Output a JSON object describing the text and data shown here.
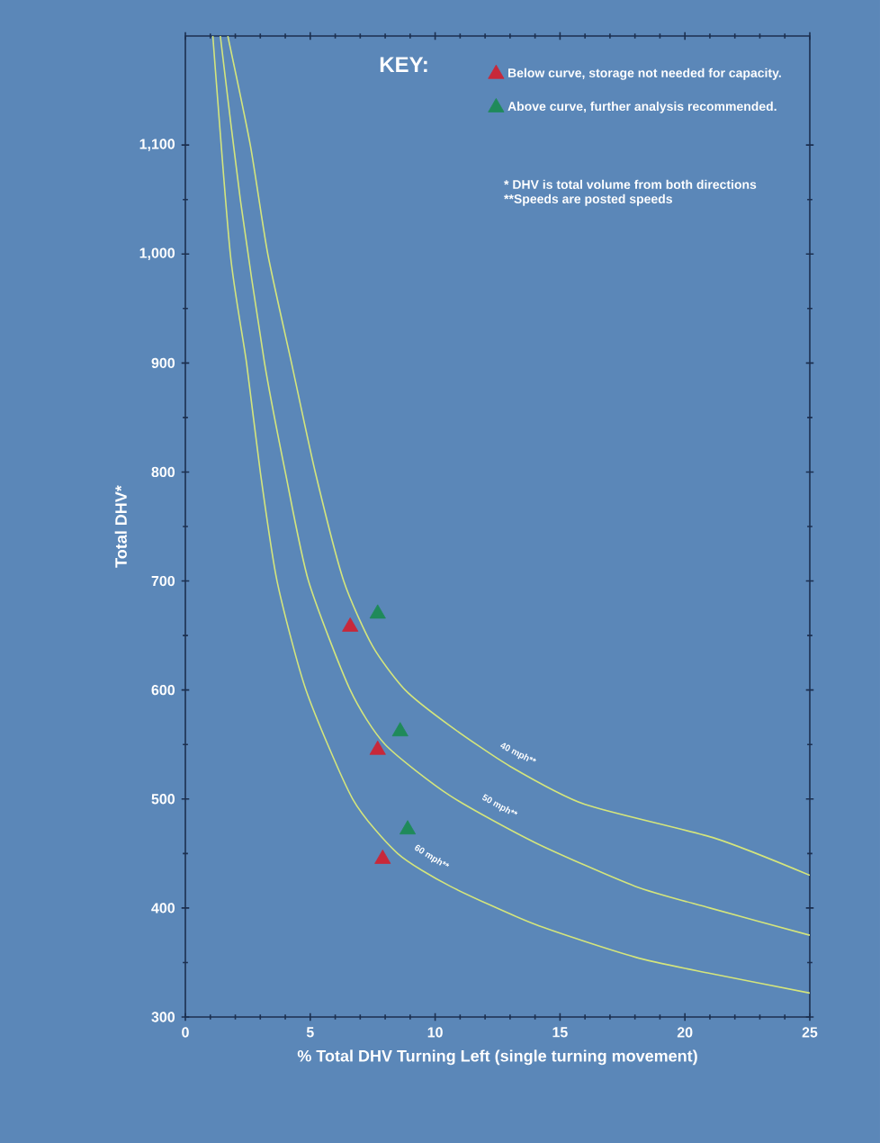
{
  "chart_data": {
    "type": "line",
    "xlabel": "% Total DHV Turning Left (single turning movement)",
    "ylabel": "Total DHV*",
    "legend_title": "KEY:",
    "xlim": [
      0,
      25
    ],
    "ylim": [
      300,
      1200
    ],
    "xticks": [
      0,
      5,
      10,
      15,
      20,
      25
    ],
    "yticks": [
      300,
      400,
      500,
      600,
      700,
      800,
      900,
      {
        "value": 1000,
        "label": "1,000"
      },
      {
        "value": 1100,
        "label": "1,100"
      }
    ],
    "grid": false,
    "legend": "top right",
    "annotations": [
      "* DHV is total volume from both directions",
      "**Speeds are posted speeds"
    ],
    "series": [
      {
        "name": "40 mph**",
        "color": "#d4e57c",
        "x": [
          1.7,
          2.6,
          3.3,
          4.25,
          5.2,
          6.34,
          7.5,
          8.8,
          10.6,
          13,
          16,
          21.2,
          25
        ],
        "values": [
          1200,
          1100,
          1000,
          900,
          800,
          700,
          640,
          600,
          567,
          530,
          495,
          464,
          430
        ]
      },
      {
        "name": "50 mph**",
        "color": "#d4e57c",
        "x": [
          1.4,
          2.2,
          3.17,
          4.0,
          4.93,
          6.6,
          8,
          10.6,
          14,
          18,
          21,
          25
        ],
        "values": [
          1200,
          1050,
          900,
          800,
          700,
          600,
          550,
          503,
          460,
          420,
          400,
          375
        ]
      },
      {
        "name": "60 mph**",
        "color": "#d4e57c",
        "x": [
          1.1,
          1.8,
          2.45,
          3.0,
          3.67,
          4.83,
          6.7,
          8.5,
          10.6,
          14,
          18,
          21,
          25
        ],
        "values": [
          1200,
          1000,
          900,
          800,
          700,
          600,
          500,
          450,
          420,
          385,
          355,
          340,
          322
        ]
      },
      {
        "name": "Below curve, storage not needed for capacity.",
        "type": "scatter",
        "marker": "triangle",
        "color": "#c8283a",
        "x": [
          6.6,
          7.7,
          7.9
        ],
        "values": [
          658,
          545,
          445
        ]
      },
      {
        "name": "Above curve, further analysis recommended.",
        "type": "scatter",
        "marker": "triangle",
        "color": "#1f8a5a",
        "x": [
          7.7,
          8.6,
          8.9
        ],
        "values": [
          670,
          562,
          472
        ]
      }
    ]
  }
}
